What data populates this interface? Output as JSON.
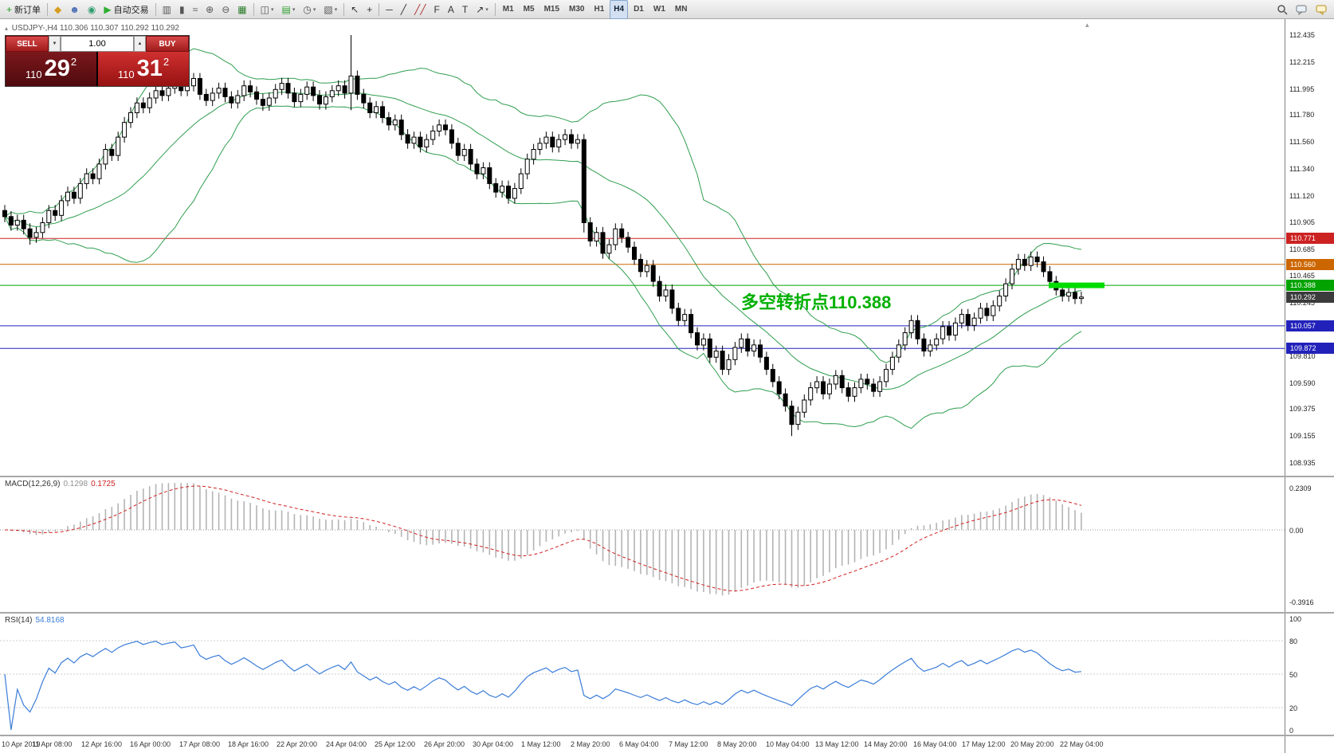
{
  "toolbar": {
    "groups": [
      {
        "items": [
          {
            "name": "new-order-button",
            "icon": "order-plus-icon",
            "glyph": "+",
            "color": "#1f9c1f",
            "label": "新订单"
          }
        ]
      },
      {
        "items": [
          {
            "name": "mql5-button",
            "icon": "diamond-icon",
            "glyph": "◆",
            "color": "#d89c20"
          },
          {
            "name": "profile-button",
            "icon": "person-icon",
            "glyph": "☻",
            "color": "#4a6fb5"
          },
          {
            "name": "community-button",
            "icon": "globe-icon",
            "glyph": "◉",
            "color": "#2e9e6e"
          },
          {
            "name": "autotrading-button",
            "icon": "play-icon",
            "glyph": "▶",
            "color": "#2eae2e",
            "label": "自动交易"
          }
        ]
      },
      {
        "items": [
          {
            "name": "bar-chart-button",
            "icon": "bar-chart-icon",
            "glyph": "▥",
            "color": "#555555"
          },
          {
            "name": "candlestick-chart-button",
            "icon": "candlestick-icon",
            "glyph": "▮",
            "color": "#555555"
          },
          {
            "name": "line-chart-button",
            "icon": "line-chart-icon",
            "glyph": "≈",
            "color": "#555555"
          },
          {
            "name": "zoom-in-button",
            "icon": "zoom-in-icon",
            "glyph": "⊕",
            "color": "#555555"
          },
          {
            "name": "zoom-out-button",
            "icon": "zoom-out-icon",
            "glyph": "⊖",
            "color": "#555555"
          },
          {
            "name": "grid-button",
            "icon": "grid-icon",
            "glyph": "▦",
            "color": "#2e7e2e"
          }
        ]
      },
      {
        "items": [
          {
            "name": "tile-windows-button",
            "icon": "tile-windows-icon",
            "glyph": "◫",
            "color": "#555555",
            "dropdown": true
          },
          {
            "name": "new-chart-button",
            "icon": "new-chart-icon",
            "glyph": "▤",
            "color": "#2e9e2e",
            "dropdown": true
          },
          {
            "name": "periods-button",
            "icon": "clock-icon",
            "glyph": "◷",
            "color": "#555555",
            "dropdown": true
          },
          {
            "name": "templates-button",
            "icon": "template-icon",
            "glyph": "▧",
            "color": "#555555",
            "dropdown": true
          }
        ]
      },
      {
        "items": [
          {
            "name": "cursor-button",
            "icon": "cursor-icon",
            "glyph": "↖",
            "color": "#333333"
          },
          {
            "name": "crosshair-button",
            "icon": "crosshair-icon",
            "glyph": "+",
            "color": "#333333"
          }
        ]
      },
      {
        "items": [
          {
            "name": "hline-tool-button",
            "icon": "horizontal-line-icon",
            "glyph": "─",
            "color": "#333333"
          },
          {
            "name": "trendline-tool-button",
            "icon": "trendline-icon",
            "glyph": "╱",
            "color": "#333333"
          },
          {
            "name": "channel-tool-button",
            "icon": "channel-icon",
            "glyph": "╱╱",
            "color": "#b03030"
          },
          {
            "name": "fibonacci-tool-button",
            "icon": "fibonacci-icon",
            "glyph": "F",
            "color": "#333333"
          },
          {
            "name": "text-tool-button",
            "icon": "text-icon",
            "glyph": "A",
            "color": "#333333"
          },
          {
            "name": "label-tool-button",
            "icon": "label-icon",
            "glyph": "T",
            "color": "#333333"
          },
          {
            "name": "arrows-tool-button",
            "icon": "arrow-icon",
            "glyph": "↗",
            "color": "#333333",
            "dropdown": true
          }
        ]
      }
    ],
    "timeframes": [
      "M1",
      "M5",
      "M15",
      "M30",
      "H1",
      "H4",
      "D1",
      "W1",
      "MN"
    ],
    "active_timeframe": "H4"
  },
  "chart_header": {
    "symbol": "USDJPY-,H4",
    "quotes": "110.306 110.307 110.292 110.292"
  },
  "quote_panel": {
    "sell_label": "SELL",
    "buy_label": "BUY",
    "volume": "1.00",
    "bid_prefix": "110",
    "bid_big": "29",
    "bid_sup": "2",
    "ask_prefix": "110",
    "ask_big": "31",
    "ask_sup": "2"
  },
  "annotation": {
    "text": "多空转折点110.388",
    "color": "#00b000"
  },
  "chart_data": {
    "type": "candlestick",
    "symbol": "USDJPY",
    "timeframe": "H4",
    "price_range": [
      108.935,
      112.435
    ],
    "price_axis_ticks": [
      "112.435",
      "112.215",
      "111.995",
      "111.780",
      "111.560",
      "111.340",
      "111.120",
      "110.905",
      "110.685",
      "110.465",
      "110.245",
      "110.030",
      "109.810",
      "109.590",
      "109.375",
      "109.155",
      "108.935"
    ],
    "time_axis_ticks": [
      "10 Apr 2019",
      "11 Apr 08:00",
      "12 Apr 16:00",
      "16 Apr 00:00",
      "17 Apr 08:00",
      "18 Apr 16:00",
      "22 Apr 20:00",
      "24 Apr 04:00",
      "25 Apr 12:00",
      "26 Apr 20:00",
      "30 Apr 04:00",
      "1 May 12:00",
      "2 May 20:00",
      "6 May 04:00",
      "7 May 12:00",
      "8 May 20:00",
      "10 May 04:00",
      "13 May 12:00",
      "14 May 20:00",
      "16 May 04:00",
      "17 May 12:00",
      "20 May 20:00",
      "22 May 04:00"
    ],
    "first_open": 111.0,
    "default_wick": 0.045,
    "closes": [
      110.95,
      110.88,
      110.92,
      110.85,
      110.78,
      110.82,
      110.9,
      111.0,
      110.96,
      111.08,
      111.15,
      111.1,
      111.22,
      111.3,
      111.26,
      111.38,
      111.5,
      111.45,
      111.6,
      111.72,
      111.8,
      111.88,
      111.84,
      111.92,
      111.98,
      111.94,
      112.0,
      112.05,
      111.98,
      112.02,
      112.08,
      111.95,
      111.9,
      111.96,
      112.0,
      111.93,
      111.88,
      111.94,
      112.02,
      111.97,
      111.91,
      111.86,
      111.92,
      111.99,
      112.04,
      111.96,
      111.89,
      111.95,
      112.01,
      111.94,
      111.87,
      111.93,
      111.98,
      112.02,
      111.96,
      112.1,
      111.95,
      111.88,
      111.8,
      111.85,
      111.76,
      111.7,
      111.74,
      111.62,
      111.55,
      111.6,
      111.52,
      111.58,
      111.65,
      111.7,
      111.66,
      111.55,
      111.45,
      111.5,
      111.38,
      111.3,
      111.35,
      111.22,
      111.15,
      111.2,
      111.1,
      111.18,
      111.3,
      111.42,
      111.5,
      111.55,
      111.6,
      111.52,
      111.58,
      111.62,
      111.55,
      111.58,
      110.9,
      110.75,
      110.82,
      110.65,
      110.72,
      110.85,
      110.78,
      110.7,
      110.6,
      110.5,
      110.55,
      110.42,
      110.3,
      110.35,
      110.2,
      110.1,
      110.15,
      110.0,
      109.9,
      109.95,
      109.8,
      109.85,
      109.7,
      109.78,
      109.88,
      109.95,
      109.85,
      109.9,
      109.8,
      109.7,
      109.6,
      109.5,
      109.4,
      109.25,
      109.35,
      109.45,
      109.55,
      109.6,
      109.5,
      109.58,
      109.65,
      109.55,
      109.48,
      109.55,
      109.62,
      109.58,
      109.52,
      109.6,
      109.7,
      109.8,
      109.9,
      110.0,
      110.1,
      109.95,
      109.85,
      109.9,
      109.95,
      110.05,
      109.98,
      110.08,
      110.15,
      110.06,
      110.12,
      110.2,
      110.14,
      110.22,
      110.3,
      110.4,
      110.52,
      110.6,
      110.55,
      110.62,
      110.58,
      110.5,
      110.42,
      110.35,
      110.3,
      110.33,
      110.28,
      110.292
    ],
    "spikes": {
      "4": {
        "l": 110.72
      },
      "55": {
        "h": 112.435,
        "l": 111.82
      },
      "92": {
        "l": 110.82
      },
      "125": {
        "l": 109.155
      }
    },
    "horizontal_lines": [
      {
        "price": 110.771,
        "label": "110.771",
        "color": "#cc2222"
      },
      {
        "price": 110.56,
        "label": "110.560",
        "color": "#cc6600"
      },
      {
        "price": 110.388,
        "label": "110.388",
        "color": "#00a300"
      },
      {
        "price": 110.292,
        "label": "110.292",
        "color": "#3c3c3c",
        "line": false
      },
      {
        "price": 110.057,
        "label": "110.057",
        "color": "#2222bb"
      },
      {
        "price": 109.872,
        "label": "109.872",
        "color": "#2222bb"
      }
    ],
    "highlight_segment": {
      "price": 110.388,
      "color": "#00dd00"
    },
    "indicators": {
      "bollinger": {
        "period": 20,
        "deviation": 2,
        "color": "#2f9e4f"
      },
      "macd": {
        "label": "MACD(12,26,9)",
        "value_main": "0.1298",
        "value_signal": "0.1725",
        "axis_ticks": [
          "0.2309",
          "0.00",
          "-0.3916"
        ],
        "range": [
          -0.42,
          0.26
        ]
      },
      "rsi": {
        "label": "RSI(14)",
        "value": "54.8168",
        "axis_ticks": [
          "100",
          "80",
          "50",
          "20",
          "0"
        ],
        "levels": [
          80,
          50,
          20
        ]
      }
    }
  }
}
